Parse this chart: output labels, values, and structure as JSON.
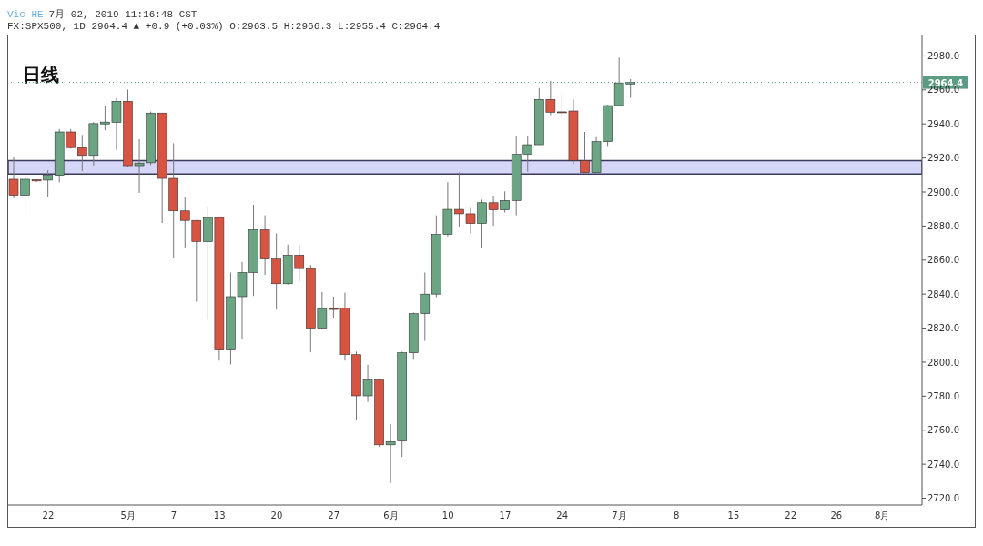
{
  "chart_data": {
    "type": "candlestick",
    "title": "日线",
    "subtitle": "FX:SPX500, 1D 2964.4 ▲ +0.9 (+0.03%) O:2963.5 H:2966.3 L:2955.4 C:2964.4",
    "annotations": [
      "Vic-HE",
      "7月 02, 2019 11:16:48 CST"
    ],
    "categories": [
      null,
      null,
      null,
      "22",
      null,
      null,
      null,
      null,
      null,
      null,
      "5月",
      null,
      null,
      null,
      "7",
      null,
      null,
      null,
      "13",
      null,
      null,
      null,
      null,
      "20",
      null,
      null,
      null,
      null,
      "27",
      null,
      null,
      null,
      null,
      "6月",
      null,
      null,
      null,
      null,
      "10",
      null,
      null,
      null,
      null,
      "17",
      null,
      null,
      null,
      null,
      "24",
      null,
      null,
      null,
      null,
      "7月",
      null,
      null,
      null,
      null,
      "8",
      null,
      null,
      null,
      null,
      "15",
      null,
      null,
      null,
      null,
      "22",
      null,
      null,
      null,
      "26",
      null,
      null,
      null,
      "8月",
      null,
      null,
      null
    ],
    "ohlc": [
      [
        2907.5,
        2920.8,
        2896.3,
        2898.1
      ],
      [
        2898.1,
        2909.3,
        2887.2,
        2907.5
      ],
      [
        2907.2,
        2907.5,
        2906,
        2906.5
      ],
      [
        2907.0,
        2912.8,
        2896.9,
        2909.8
      ],
      [
        2909.8,
        2937.0,
        2905.7,
        2935.3
      ],
      [
        2935.3,
        2937.0,
        2925.5,
        2926.1
      ],
      [
        2926.1,
        2933.5,
        2912.3,
        2921.5
      ],
      [
        2921.5,
        2941.1,
        2915.5,
        2940.2
      ],
      [
        2940.0,
        2950.5,
        2936.3,
        2941.1
      ],
      [
        2940.9,
        2955.2,
        2924.7,
        2953.3
      ],
      [
        2953.3,
        2960.2,
        2915.0,
        2915.5
      ],
      [
        2915.5,
        2931.0,
        2899.5,
        2917.0
      ],
      [
        2917.2,
        2947.3,
        2915.8,
        2946.4
      ],
      [
        2946.4,
        2946.6,
        2881.8,
        2908.0
      ],
      [
        2908.0,
        2928.7,
        2861.0,
        2888.9
      ],
      [
        2888.9,
        2896.9,
        2867.4,
        2883.3
      ],
      [
        2883.3,
        2883.5,
        2835.5,
        2870.9
      ],
      [
        2870.9,
        2891.2,
        2824.9,
        2885.0
      ],
      [
        2885.0,
        2885.1,
        2800.9,
        2807.1
      ],
      [
        2807.1,
        2852.7,
        2798.7,
        2838.5
      ],
      [
        2838.5,
        2858.9,
        2813.8,
        2852.7
      ],
      [
        2852.7,
        2892.5,
        2838.9,
        2877.8
      ],
      [
        2877.8,
        2886.3,
        2851.3,
        2860.6
      ],
      [
        2860.6,
        2875.7,
        2830.9,
        2846.1
      ],
      [
        2846.1,
        2869.1,
        2845.6,
        2862.9
      ],
      [
        2862.9,
        2868.6,
        2847.4,
        2855.0
      ],
      [
        2855.0,
        2857.1,
        2805.8,
        2820.0
      ],
      [
        2820.0,
        2841.2,
        2819.1,
        2831.5
      ],
      [
        2831.5,
        2838.5,
        2826.2,
        2831.5
      ],
      [
        2831.8,
        2840.8,
        2800.9,
        2804.4
      ],
      [
        2804.4,
        2806.2,
        2766.0,
        2780.2
      ],
      [
        2780.2,
        2798.4,
        2776.6,
        2789.5
      ],
      [
        2789.5,
        2789.9,
        2750.1,
        2751.4
      ],
      [
        2751.4,
        2763.7,
        2728.9,
        2753.3
      ],
      [
        2753.7,
        2806.2,
        2744.3,
        2805.5
      ],
      [
        2805.5,
        2829.2,
        2801.4,
        2828.5
      ],
      [
        2828.5,
        2852.7,
        2812.5,
        2840.0
      ],
      [
        2840.0,
        2886.3,
        2838.2,
        2875.1
      ],
      [
        2875.1,
        2905.7,
        2873.9,
        2889.8
      ],
      [
        2889.8,
        2911.6,
        2879.7,
        2887.2
      ],
      [
        2887.2,
        2890.7,
        2875.7,
        2881.5
      ],
      [
        2881.5,
        2895.5,
        2866.8,
        2893.7
      ],
      [
        2893.7,
        2897.8,
        2880.1,
        2889.5
      ],
      [
        2889.5,
        2900.4,
        2888.0,
        2895.0
      ],
      [
        2895.0,
        2932.8,
        2886.3,
        2922.2
      ],
      [
        2922.2,
        2933.1,
        2911.9,
        2927.8
      ],
      [
        2927.8,
        2961.1,
        2927.8,
        2954.4
      ],
      [
        2954.4,
        2965.3,
        2945.2,
        2946.9
      ],
      [
        2947.1,
        2958.3,
        2943.8,
        2946.7
      ],
      [
        2947.6,
        2954.4,
        2916.3,
        2918.6
      ],
      [
        2918.5,
        2935.3,
        2911.4,
        2911.4
      ],
      [
        2911.4,
        2932.3,
        2911.0,
        2929.6
      ],
      [
        2929.6,
        2951.2,
        2927.0,
        2950.8
      ],
      [
        2950.8,
        2979.0,
        2950.8,
        2964.1
      ],
      [
        2963.5,
        2966.3,
        2955.4,
        2964.4
      ],
      null,
      null,
      null,
      null,
      null,
      null,
      null,
      null,
      null,
      null,
      null,
      null,
      null,
      null,
      null,
      null,
      null,
      null,
      null,
      null,
      null,
      null,
      null,
      null,
      null
    ],
    "colors": [
      "#d75442",
      "#6ba583",
      "#d75442",
      "#6ba583",
      "#6ba583",
      "#d75442",
      "#d75442",
      "#6ba583",
      "#6ba583",
      "#6ba583",
      "#d75442",
      "#6ba583",
      "#6ba583",
      "#d75442",
      "#d75442",
      "#d75442",
      "#d75442",
      "#6ba583",
      "#d75442",
      "#6ba583",
      "#6ba583",
      "#6ba583",
      "#d75442",
      "#d75442",
      "#6ba583",
      "#d75442",
      "#d75442",
      "#6ba583",
      "#d75442",
      "#d75442",
      "#d75442",
      "#6ba583",
      "#d75442",
      "#6ba583",
      "#6ba583",
      "#6ba583",
      "#6ba583",
      "#6ba583",
      "#6ba583",
      "#d75442",
      "#d75442",
      "#6ba583",
      "#d75442",
      "#6ba583",
      "#6ba583",
      "#6ba583",
      "#6ba583",
      "#d75442",
      "#d75442",
      "#d75442",
      "#d75442",
      "#6ba583",
      "#6ba583",
      "#6ba583",
      "#6ba583",
      null,
      null,
      null,
      null,
      null,
      null,
      null,
      null,
      null,
      null,
      null,
      null,
      null,
      null,
      null,
      null,
      null,
      null,
      null,
      null,
      null,
      null,
      null,
      null,
      null
    ],
    "ylim": [
      2716,
      2992
    ],
    "yticks": [
      {
        "value": 2720,
        "label": "2720.0"
      },
      {
        "value": 2740,
        "label": "2740.0"
      },
      {
        "value": 2760,
        "label": "2760.0"
      },
      {
        "value": 2780,
        "label": "2780.0"
      },
      {
        "value": 2800,
        "label": "2800.0"
      },
      {
        "value": 2820,
        "label": "2820.0"
      },
      {
        "value": 2840,
        "label": "2840.0"
      },
      {
        "value": 2860,
        "label": "2860.0"
      },
      {
        "value": 2880,
        "label": "2880.0"
      },
      {
        "value": 2900,
        "label": "2900.0"
      },
      {
        "value": 2920,
        "label": "2920.0"
      },
      {
        "value": 2940,
        "label": "2940.0"
      },
      {
        "value": 2960,
        "label": "2960.0"
      },
      {
        "value": 2980,
        "label": "2980.0"
      }
    ],
    "ref_lines": [
      {
        "axis": "y",
        "value": 2964.4,
        "label": "2964.4",
        "color": "#5b9c84",
        "line_style": "dotted"
      }
    ],
    "bands": [
      {
        "axis": "y",
        "from": 2910.5,
        "to": 2918.5,
        "color": "#d6d6f8"
      }
    ]
  }
}
